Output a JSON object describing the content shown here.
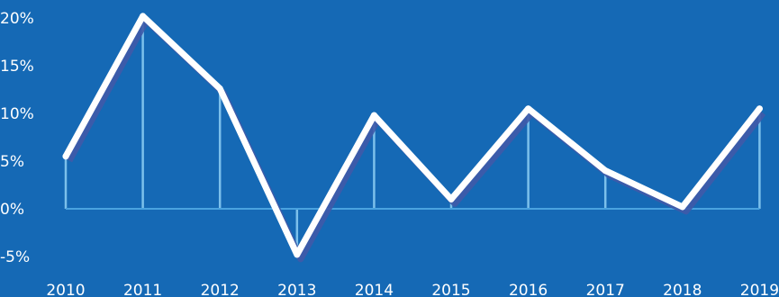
{
  "colors": {
    "background": "#1569b5",
    "line": "#ffffff",
    "line_shadow": "#3f5aa8",
    "drop_line": "#8fd0f5",
    "zero_line": "#4aa3e0"
  },
  "chart_data": {
    "type": "line",
    "title": "",
    "xlabel": "",
    "ylabel": "",
    "x": [
      "2010",
      "2011",
      "2012",
      "2013",
      "2014",
      "2015",
      "2016",
      "2017",
      "2018",
      "2019"
    ],
    "series": [
      {
        "values": [
          5.5,
          20.2,
          12.6,
          -4.8,
          9.8,
          1.0,
          10.5,
          4.0,
          0.2,
          10.5
        ]
      }
    ],
    "ylim": [
      -5,
      20
    ],
    "yticks": [
      20,
      15,
      10,
      5,
      0,
      -5
    ],
    "ytick_labels": [
      "20%",
      "15%",
      "10%",
      "5%",
      "0%",
      "-5%"
    ],
    "drop_lines": true,
    "grid": false,
    "legend": "none"
  }
}
